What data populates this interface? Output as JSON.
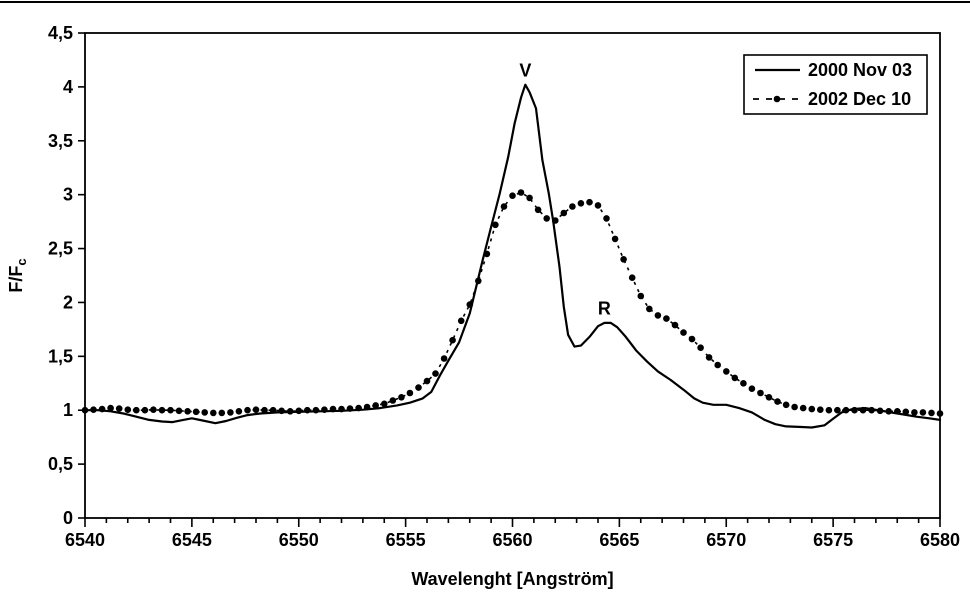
{
  "figure": {
    "background": "#ffffff",
    "ink_color": "#000000",
    "top_rule": true
  },
  "chart_data": {
    "type": "line",
    "title": "",
    "xlabel": "Wavelenght [Angström]",
    "ylabel_main": "F/F",
    "ylabel_sub": "c",
    "xlim": [
      6540,
      6580
    ],
    "ylim": [
      0,
      4.5
    ],
    "grid": false,
    "x_minor_step": 1,
    "x_ticks": [
      {
        "value": 6540,
        "label": "6540"
      },
      {
        "value": 6545,
        "label": "6545"
      },
      {
        "value": 6550,
        "label": "6550"
      },
      {
        "value": 6555,
        "label": "6555"
      },
      {
        "value": 6560,
        "label": "6560"
      },
      {
        "value": 6565,
        "label": "6565"
      },
      {
        "value": 6570,
        "label": "6570"
      },
      {
        "value": 6575,
        "label": "6575"
      },
      {
        "value": 6580,
        "label": "6580"
      }
    ],
    "y_ticks": [
      {
        "value": 0,
        "label": "0"
      },
      {
        "value": 0.5,
        "label": "0,5"
      },
      {
        "value": 1,
        "label": "1"
      },
      {
        "value": 1.5,
        "label": "1,5"
      },
      {
        "value": 2,
        "label": "2"
      },
      {
        "value": 2.5,
        "label": "2,5"
      },
      {
        "value": 3,
        "label": "3"
      },
      {
        "value": 3.5,
        "label": "3,5"
      },
      {
        "value": 4,
        "label": "4"
      },
      {
        "value": 4.5,
        "label": "4,5"
      }
    ],
    "annotations": [
      {
        "text": "V",
        "x": 6560.6,
        "y": 4.05
      },
      {
        "text": "R",
        "x": 6564.3,
        "y": 1.84
      }
    ],
    "legend": {
      "position": "top-right",
      "entries": [
        {
          "label": "2000 Nov 03",
          "style": "solid"
        },
        {
          "label": "2002 Dec 10",
          "style": "dash-dot"
        }
      ]
    },
    "series": [
      {
        "name": "2000 Nov 03",
        "style": "solid",
        "color": "#000000",
        "points": [
          [
            6540.0,
            1.0
          ],
          [
            6540.6,
            1.0
          ],
          [
            6541.2,
            0.99
          ],
          [
            6541.8,
            0.97
          ],
          [
            6542.4,
            0.94
          ],
          [
            6543.0,
            0.91
          ],
          [
            6543.6,
            0.895
          ],
          [
            6544.1,
            0.89
          ],
          [
            6544.6,
            0.91
          ],
          [
            6545.0,
            0.925
          ],
          [
            6545.5,
            0.905
          ],
          [
            6546.1,
            0.88
          ],
          [
            6546.6,
            0.9
          ],
          [
            6547.1,
            0.93
          ],
          [
            6547.6,
            0.955
          ],
          [
            6548.2,
            0.97
          ],
          [
            6549.0,
            0.98
          ],
          [
            6550.0,
            0.985
          ],
          [
            6551.0,
            0.99
          ],
          [
            6552.0,
            0.995
          ],
          [
            6553.0,
            1.005
          ],
          [
            6553.8,
            1.02
          ],
          [
            6554.6,
            1.045
          ],
          [
            6555.2,
            1.07
          ],
          [
            6555.8,
            1.11
          ],
          [
            6556.2,
            1.17
          ],
          [
            6556.6,
            1.32
          ],
          [
            6557.0,
            1.46
          ],
          [
            6557.5,
            1.63
          ],
          [
            6558.0,
            1.9
          ],
          [
            6558.6,
            2.39
          ],
          [
            6559.0,
            2.7
          ],
          [
            6559.4,
            3.01
          ],
          [
            6559.8,
            3.35
          ],
          [
            6560.1,
            3.66
          ],
          [
            6560.4,
            3.9
          ],
          [
            6560.6,
            4.02
          ],
          [
            6560.8,
            3.95
          ],
          [
            6561.1,
            3.8
          ],
          [
            6561.4,
            3.32
          ],
          [
            6561.7,
            3.01
          ],
          [
            6561.9,
            2.76
          ],
          [
            6562.2,
            2.33
          ],
          [
            6562.4,
            1.96
          ],
          [
            6562.6,
            1.7
          ],
          [
            6562.9,
            1.59
          ],
          [
            6563.2,
            1.6
          ],
          [
            6563.6,
            1.68
          ],
          [
            6564.0,
            1.78
          ],
          [
            6564.3,
            1.81
          ],
          [
            6564.6,
            1.81
          ],
          [
            6564.9,
            1.77
          ],
          [
            6565.3,
            1.68
          ],
          [
            6565.8,
            1.55
          ],
          [
            6566.3,
            1.45
          ],
          [
            6566.8,
            1.36
          ],
          [
            6567.4,
            1.28
          ],
          [
            6568.0,
            1.19
          ],
          [
            6568.5,
            1.11
          ],
          [
            6568.9,
            1.07
          ],
          [
            6569.4,
            1.05
          ],
          [
            6570.0,
            1.05
          ],
          [
            6570.6,
            1.02
          ],
          [
            6571.2,
            0.98
          ],
          [
            6571.8,
            0.91
          ],
          [
            6572.3,
            0.87
          ],
          [
            6572.8,
            0.85
          ],
          [
            6573.4,
            0.845
          ],
          [
            6574.0,
            0.84
          ],
          [
            6574.6,
            0.86
          ],
          [
            6575.0,
            0.92
          ],
          [
            6575.4,
            0.98
          ],
          [
            6575.9,
            1.01
          ],
          [
            6576.5,
            1.02
          ],
          [
            6577.1,
            1.0
          ],
          [
            6577.7,
            0.98
          ],
          [
            6578.3,
            0.96
          ],
          [
            6578.9,
            0.94
          ],
          [
            6579.5,
            0.925
          ],
          [
            6580.0,
            0.91
          ]
        ]
      },
      {
        "name": "2002 Dec 10",
        "style": "dash-dot",
        "color": "#000000",
        "points": [
          [
            6540.0,
            1.0
          ],
          [
            6540.4,
            1.005
          ],
          [
            6540.8,
            1.01
          ],
          [
            6541.2,
            1.02
          ],
          [
            6541.6,
            1.015
          ],
          [
            6542.0,
            1.005
          ],
          [
            6542.4,
            1.0
          ],
          [
            6542.8,
            1.0
          ],
          [
            6543.2,
            1.005
          ],
          [
            6543.6,
            1.0
          ],
          [
            6544.0,
            1.0
          ],
          [
            6544.4,
            0.995
          ],
          [
            6544.8,
            0.99
          ],
          [
            6545.2,
            0.985
          ],
          [
            6545.6,
            0.98
          ],
          [
            6546.0,
            0.975
          ],
          [
            6546.4,
            0.975
          ],
          [
            6546.8,
            0.98
          ],
          [
            6547.2,
            0.99
          ],
          [
            6547.6,
            1.0
          ],
          [
            6548.0,
            1.005
          ],
          [
            6548.4,
            1.0
          ],
          [
            6548.8,
            1.0
          ],
          [
            6549.2,
            0.995
          ],
          [
            6549.6,
            0.99
          ],
          [
            6550.0,
            0.995
          ],
          [
            6550.4,
            1.0
          ],
          [
            6550.8,
            1.0
          ],
          [
            6551.2,
            1.005
          ],
          [
            6551.6,
            1.01
          ],
          [
            6552.0,
            1.01
          ],
          [
            6552.4,
            1.015
          ],
          [
            6552.8,
            1.02
          ],
          [
            6553.2,
            1.03
          ],
          [
            6553.6,
            1.045
          ],
          [
            6554.0,
            1.06
          ],
          [
            6554.4,
            1.09
          ],
          [
            6554.8,
            1.12
          ],
          [
            6555.2,
            1.16
          ],
          [
            6555.6,
            1.21
          ],
          [
            6556.0,
            1.27
          ],
          [
            6556.4,
            1.34
          ],
          [
            6556.8,
            1.48
          ],
          [
            6557.2,
            1.65
          ],
          [
            6557.6,
            1.83
          ],
          [
            6558.0,
            1.98
          ],
          [
            6558.4,
            2.2
          ],
          [
            6558.8,
            2.45
          ],
          [
            6559.2,
            2.72
          ],
          [
            6559.6,
            2.89
          ],
          [
            6560.0,
            2.99
          ],
          [
            6560.4,
            3.02
          ],
          [
            6560.8,
            2.97
          ],
          [
            6561.2,
            2.86
          ],
          [
            6561.6,
            2.78
          ],
          [
            6562.0,
            2.76
          ],
          [
            6562.4,
            2.83
          ],
          [
            6562.8,
            2.89
          ],
          [
            6563.2,
            2.92
          ],
          [
            6563.6,
            2.93
          ],
          [
            6564.0,
            2.9
          ],
          [
            6564.4,
            2.78
          ],
          [
            6564.8,
            2.59
          ],
          [
            6565.2,
            2.4
          ],
          [
            6565.6,
            2.23
          ],
          [
            6566.0,
            2.06
          ],
          [
            6566.4,
            1.94
          ],
          [
            6566.8,
            1.88
          ],
          [
            6567.2,
            1.85
          ],
          [
            6567.6,
            1.79
          ],
          [
            6568.0,
            1.72
          ],
          [
            6568.4,
            1.66
          ],
          [
            6568.8,
            1.58
          ],
          [
            6569.2,
            1.49
          ],
          [
            6569.6,
            1.42
          ],
          [
            6570.0,
            1.36
          ],
          [
            6570.4,
            1.3
          ],
          [
            6570.8,
            1.25
          ],
          [
            6571.2,
            1.2
          ],
          [
            6571.6,
            1.16
          ],
          [
            6572.0,
            1.12
          ],
          [
            6572.4,
            1.08
          ],
          [
            6572.8,
            1.05
          ],
          [
            6573.2,
            1.03
          ],
          [
            6573.6,
            1.02
          ],
          [
            6574.0,
            1.01
          ],
          [
            6574.4,
            1.005
          ],
          [
            6574.8,
            1.0
          ],
          [
            6575.2,
            1.0
          ],
          [
            6575.6,
            1.0
          ],
          [
            6576.0,
            1.0
          ],
          [
            6576.4,
            1.0
          ],
          [
            6576.8,
            1.0
          ],
          [
            6577.2,
            0.995
          ],
          [
            6577.6,
            0.99
          ],
          [
            6578.0,
            0.99
          ],
          [
            6578.4,
            0.985
          ],
          [
            6578.8,
            0.98
          ],
          [
            6579.2,
            0.98
          ],
          [
            6579.6,
            0.975
          ],
          [
            6580.0,
            0.97
          ]
        ]
      }
    ]
  }
}
